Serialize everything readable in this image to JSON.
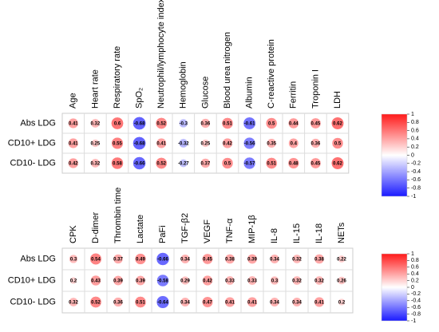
{
  "chart_data": [
    {
      "type": "corrplot",
      "columns": [
        "Age",
        "Heart rate",
        "Respiratory rate",
        "SpO₂",
        "Neutrophil/lymphocyte index",
        "Hemoglobin",
        "Glucose",
        "Blood urea nitrogen",
        "Albumin",
        "C-reactive protein",
        "Ferritin",
        "Troponin I",
        "LDH"
      ],
      "rows": [
        "Abs LDG",
        "CD10+ LDG",
        "CD10- LDG"
      ],
      "values": [
        [
          0.41,
          0.32,
          0.6,
          -0.68,
          0.52,
          -0.3,
          0.36,
          0.51,
          -0.61,
          0.5,
          0.44,
          0.45,
          0.62
        ],
        [
          0.41,
          0.25,
          0.55,
          -0.68,
          0.41,
          -0.32,
          0.25,
          0.42,
          -0.56,
          0.35,
          0.4,
          0.36,
          0.5
        ],
        [
          0.42,
          0.32,
          0.58,
          -0.66,
          0.52,
          -0.27,
          0.37,
          0.5,
          -0.57,
          0.51,
          0.48,
          0.45,
          0.62
        ]
      ],
      "zlim": [
        -1,
        1
      ],
      "zticks": [
        1,
        0.8,
        0.6,
        0.4,
        0.2,
        0,
        -0.2,
        -0.4,
        -0.6,
        -0.8,
        -1
      ],
      "colors": [
        "#1a1aff",
        "#ffffff",
        "#ff1a1a"
      ]
    },
    {
      "type": "corrplot",
      "columns": [
        "CPK",
        "D-dimer",
        "Thrombin time",
        "Lactate",
        "PaFi",
        "TGF-β2",
        "VEGF",
        "TNF-α",
        "MIP-1β",
        "IL-8",
        "IL-15",
        "IL-18",
        "NETs"
      ],
      "rows": [
        "Abs LDG",
        "CD10+ LDG",
        "CD10- LDG"
      ],
      "values": [
        [
          0.3,
          0.54,
          0.37,
          0.49,
          -0.66,
          0.34,
          0.45,
          0.38,
          0.39,
          0.34,
          0.32,
          0.38,
          0.22
        ],
        [
          0.2,
          0.43,
          0.39,
          0.39,
          -0.58,
          0.29,
          0.42,
          0.33,
          0.33,
          0.3,
          0.32,
          0.32,
          0.26
        ],
        [
          0.32,
          0.52,
          0.36,
          0.51,
          -0.64,
          0.34,
          0.47,
          0.41,
          0.41,
          0.34,
          0.34,
          0.41,
          0.2
        ]
      ],
      "zlim": [
        -1,
        1
      ],
      "zticks": [
        1,
        0.8,
        0.6,
        0.4,
        0.2,
        0,
        -0.2,
        -0.4,
        -0.6,
        -0.8,
        -1
      ],
      "colors": [
        "#1a1aff",
        "#ffffff",
        "#ff1a1a"
      ]
    }
  ]
}
